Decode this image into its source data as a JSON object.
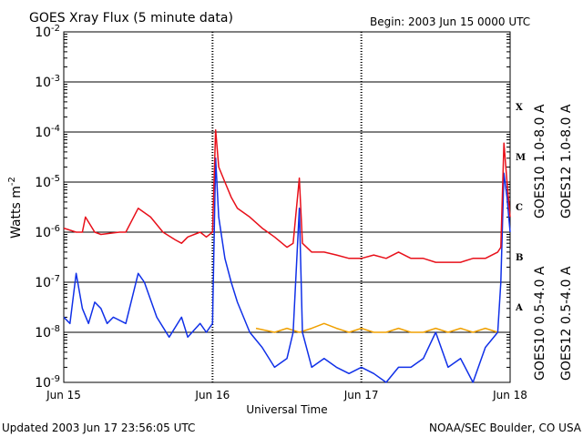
{
  "chart_data": {
    "type": "line",
    "title": "GOES Xray Flux (5 minute data)",
    "begin_text": "Begin:  2003 Jun 15 0000 UTC",
    "xlabel": "Universal Time",
    "ylabel": "Watts m",
    "ylabel_sup": "-2",
    "y_scale": "log",
    "ylim": [
      1e-09,
      0.01
    ],
    "xlim": [
      "2003-06-15 00:00",
      "2003-06-18 00:00"
    ],
    "x_ticks": [
      "Jun 15",
      "Jun 16",
      "Jun 17",
      "Jun 18"
    ],
    "y_ticks": [
      {
        "base": "10",
        "exp": "-9"
      },
      {
        "base": "10",
        "exp": "-8"
      },
      {
        "base": "10",
        "exp": "-7"
      },
      {
        "base": "10",
        "exp": "-6"
      },
      {
        "base": "10",
        "exp": "-5"
      },
      {
        "base": "10",
        "exp": "-4"
      },
      {
        "base": "10",
        "exp": "-3"
      },
      {
        "base": "10",
        "exp": "-2"
      }
    ],
    "flare_classes": [
      "A",
      "B",
      "C",
      "M",
      "X"
    ],
    "grid": true,
    "colors": {
      "goes10_long": "#7b2fd0",
      "goes12_long": "#e8101a",
      "goes10_short": "#f0a000",
      "goes12_short": "#1030e8"
    },
    "series": [
      {
        "name": "GOES12 1.0-8.0 A",
        "key": "goes12_long",
        "x": [
          "2003-06-15 00:00",
          "2003-06-15 02:00",
          "2003-06-15 03:00",
          "2003-06-15 03:30",
          "2003-06-15 05:00",
          "2003-06-15 06:00",
          "2003-06-15 09:00",
          "2003-06-15 10:00",
          "2003-06-15 12:00",
          "2003-06-15 14:00",
          "2003-06-15 16:00",
          "2003-06-15 18:00",
          "2003-06-15 19:00",
          "2003-06-15 20:00",
          "2003-06-15 22:00",
          "2003-06-15 23:00",
          "2003-06-16 00:00",
          "2003-06-16 00:30",
          "2003-06-16 01:00",
          "2003-06-16 02:00",
          "2003-06-16 03:00",
          "2003-06-16 04:00",
          "2003-06-16 06:00",
          "2003-06-16 08:00",
          "2003-06-16 10:00",
          "2003-06-16 12:00",
          "2003-06-16 13:00",
          "2003-06-16 14:00",
          "2003-06-16 14:30",
          "2003-06-16 16:00",
          "2003-06-16 18:00",
          "2003-06-16 20:00",
          "2003-06-16 22:00",
          "2003-06-17 00:00",
          "2003-06-17 02:00",
          "2003-06-17 04:00",
          "2003-06-17 06:00",
          "2003-06-17 08:00",
          "2003-06-17 10:00",
          "2003-06-17 12:00",
          "2003-06-17 14:00",
          "2003-06-17 16:00",
          "2003-06-17 18:00",
          "2003-06-17 20:00",
          "2003-06-17 22:00",
          "2003-06-17 22:30",
          "2003-06-17 23:00",
          "2003-06-17 23:30",
          "2003-06-18 00:00"
        ],
        "values": [
          1.2e-06,
          1e-06,
          1e-06,
          2e-06,
          1e-06,
          9e-07,
          1e-06,
          1e-06,
          3e-06,
          2e-06,
          1e-06,
          7e-07,
          6e-07,
          8e-07,
          1e-06,
          8e-07,
          1e-06,
          0.00011,
          2e-05,
          1e-05,
          5e-06,
          3e-06,
          2e-06,
          1.2e-06,
          8e-07,
          5e-07,
          6e-07,
          1.2e-05,
          6e-07,
          4e-07,
          4e-07,
          3.5e-07,
          3e-07,
          3e-07,
          3.5e-07,
          3e-07,
          4e-07,
          3e-07,
          3e-07,
          2.5e-07,
          2.5e-07,
          2.5e-07,
          3e-07,
          3e-07,
          4e-07,
          5e-07,
          6e-05,
          1e-05,
          2e-06
        ]
      },
      {
        "name": "GOES10 1.0-8.0 A",
        "key": "goes10_long",
        "x": [],
        "values": []
      },
      {
        "name": "GOES12 0.5-4.0 A",
        "key": "goes12_short",
        "x": [
          "2003-06-15 00:00",
          "2003-06-15 01:00",
          "2003-06-15 02:00",
          "2003-06-15 03:00",
          "2003-06-15 04:00",
          "2003-06-15 05:00",
          "2003-06-15 06:00",
          "2003-06-15 07:00",
          "2003-06-15 08:00",
          "2003-06-15 10:00",
          "2003-06-15 12:00",
          "2003-06-15 13:00",
          "2003-06-15 15:00",
          "2003-06-15 17:00",
          "2003-06-15 19:00",
          "2003-06-15 20:00",
          "2003-06-15 22:00",
          "2003-06-15 23:00",
          "2003-06-16 00:00",
          "2003-06-16 00:30",
          "2003-06-16 01:00",
          "2003-06-16 02:00",
          "2003-06-16 03:00",
          "2003-06-16 04:00",
          "2003-06-16 06:00",
          "2003-06-16 08:00",
          "2003-06-16 10:00",
          "2003-06-16 12:00",
          "2003-06-16 13:00",
          "2003-06-16 14:00",
          "2003-06-16 14:30",
          "2003-06-16 16:00",
          "2003-06-16 18:00",
          "2003-06-16 20:00",
          "2003-06-16 22:00",
          "2003-06-17 00:00",
          "2003-06-17 02:00",
          "2003-06-17 04:00",
          "2003-06-17 06:00",
          "2003-06-17 08:00",
          "2003-06-17 10:00",
          "2003-06-17 12:00",
          "2003-06-17 14:00",
          "2003-06-17 16:00",
          "2003-06-17 18:00",
          "2003-06-17 20:00",
          "2003-06-17 22:00",
          "2003-06-17 22:30",
          "2003-06-17 23:00",
          "2003-06-17 23:30",
          "2003-06-18 00:00"
        ],
        "values": [
          2e-08,
          1.5e-08,
          1.5e-07,
          3e-08,
          1.5e-08,
          4e-08,
          3e-08,
          1.5e-08,
          2e-08,
          1.5e-08,
          1.5e-07,
          1e-07,
          2e-08,
          8e-09,
          2e-08,
          8e-09,
          1.5e-08,
          1e-08,
          1.5e-08,
          3e-05,
          2e-06,
          3e-07,
          1e-07,
          4e-08,
          1e-08,
          5e-09,
          2e-09,
          3e-09,
          1e-08,
          3e-06,
          1e-08,
          2e-09,
          3e-09,
          2e-09,
          1.5e-09,
          2e-09,
          1.5e-09,
          1e-09,
          2e-09,
          2e-09,
          3e-09,
          1e-08,
          2e-09,
          3e-09,
          1e-09,
          5e-09,
          1e-08,
          1e-07,
          1.5e-05,
          5e-06,
          1e-06
        ]
      },
      {
        "name": "GOES10 0.5-4.0 A",
        "key": "goes10_short",
        "x": [
          "2003-06-16 07:00",
          "2003-06-16 10:00",
          "2003-06-16 12:00",
          "2003-06-16 14:00",
          "2003-06-16 16:00",
          "2003-06-16 18:00",
          "2003-06-16 20:00",
          "2003-06-16 22:00",
          "2003-06-17 00:00",
          "2003-06-17 02:00",
          "2003-06-17 04:00",
          "2003-06-17 06:00",
          "2003-06-17 08:00",
          "2003-06-17 10:00",
          "2003-06-17 12:00",
          "2003-06-17 14:00",
          "2003-06-17 16:00",
          "2003-06-17 18:00",
          "2003-06-17 20:00",
          "2003-06-17 22:00"
        ],
        "values": [
          1.2e-08,
          1e-08,
          1.2e-08,
          1e-08,
          1.2e-08,
          1.5e-08,
          1.2e-08,
          1e-08,
          1.2e-08,
          1e-08,
          1e-08,
          1.2e-08,
          1e-08,
          1e-08,
          1.2e-08,
          1e-08,
          1.2e-08,
          1e-08,
          1.2e-08,
          1e-08
        ]
      }
    ],
    "footer_left": "Updated 2003 Jun 17 23:56:05 UTC",
    "footer_right": "NOAA/SEC Boulder, CO USA"
  }
}
